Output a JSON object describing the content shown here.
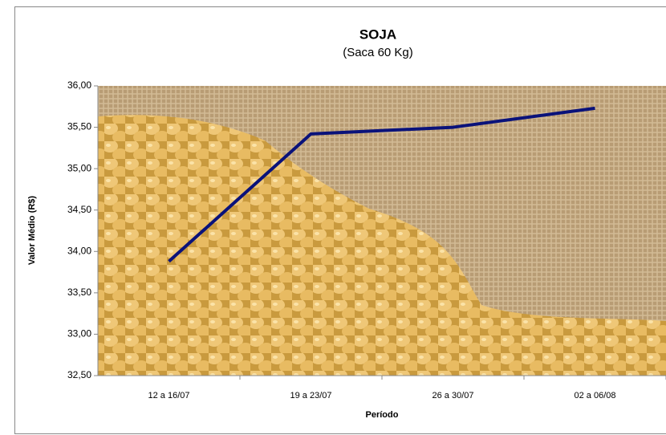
{
  "chart_data": {
    "type": "line",
    "title": "SOJA",
    "subtitle": "(Saca 60 Kg)",
    "x_label": "Período",
    "y_label": "Valor Médio (R$)",
    "categories": [
      "12 a 16/07",
      "19 a 23/07",
      "26 a 30/07",
      "02 a 06/08"
    ],
    "series": [
      {
        "name": "Soja",
        "color": "#0a127a",
        "values": [
          33.88,
          35.42,
          35.5,
          35.73
        ]
      }
    ],
    "ylim": [
      32.5,
      36
    ],
    "yticks": [
      {
        "value": 32.5,
        "label": "32,50"
      },
      {
        "value": 33,
        "label": "33,00"
      },
      {
        "value": 33.5,
        "label": "33,50"
      },
      {
        "value": 34,
        "label": "34,00"
      },
      {
        "value": 34.5,
        "label": "34,50"
      },
      {
        "value": 35,
        "label": "35,00"
      },
      {
        "value": 35.5,
        "label": "35,50"
      },
      {
        "value": 36,
        "label": "36,00"
      }
    ]
  }
}
